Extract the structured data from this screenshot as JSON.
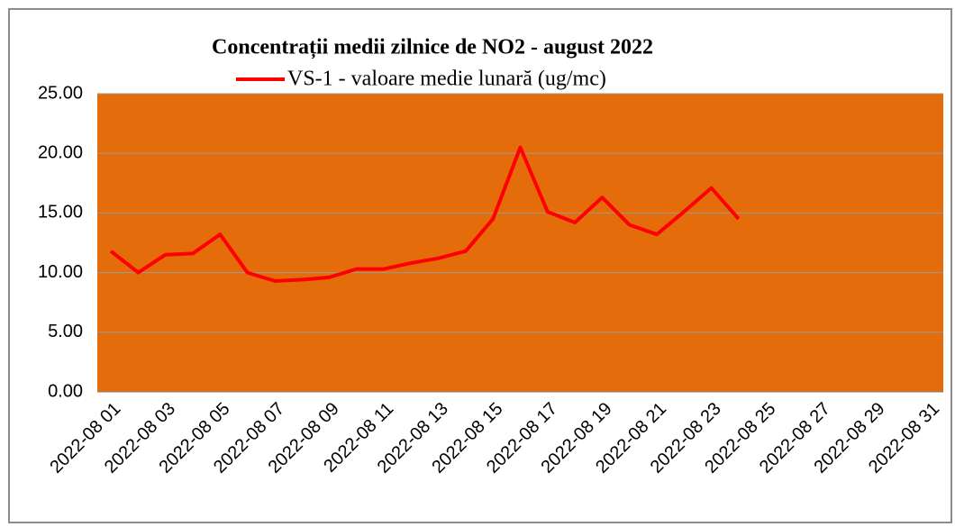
{
  "chart_data": {
    "type": "line",
    "title": "Concentrații  medii zilnice de NO2 - august 2022",
    "categories": [
      "2022-08 01",
      null,
      "2022-08 03",
      null,
      "2022-08 05",
      null,
      "2022-08 07",
      null,
      "2022-08 09",
      null,
      "2022-08 11",
      null,
      "2022-08 13",
      null,
      "2022-08 15",
      null,
      "2022-08 17",
      null,
      "2022-08 19",
      null,
      "2022-08 21",
      null,
      "2022-08 23",
      null,
      "2022-08 25",
      null,
      "2022-08 27",
      null,
      "2022-08 29",
      null,
      "2022-08 31"
    ],
    "series": [
      {
        "name": "VS-1 - valoare medie lunară (ug/mc)",
        "color": "#ff0000",
        "values": [
          11.8,
          10.0,
          11.5,
          11.6,
          13.2,
          10.0,
          9.3,
          9.4,
          9.6,
          10.3,
          10.3,
          10.8,
          11.2,
          11.8,
          14.5,
          20.5,
          15.1,
          14.2,
          16.3,
          14.0,
          13.2,
          15.1,
          17.1,
          14.5,
          null,
          null,
          null,
          null,
          null,
          null,
          null
        ]
      }
    ],
    "ylim": [
      0,
      25
    ],
    "yticks": [
      {
        "value": 0,
        "label": "0.00"
      },
      {
        "value": 5,
        "label": "5.00"
      },
      {
        "value": 10,
        "label": "10.00"
      },
      {
        "value": 15,
        "label": "15.00"
      },
      {
        "value": 20,
        "label": "20.00"
      },
      {
        "value": 25,
        "label": "25.00"
      }
    ],
    "grid": true,
    "plot_background": "#e46c0a",
    "legend": "top"
  }
}
